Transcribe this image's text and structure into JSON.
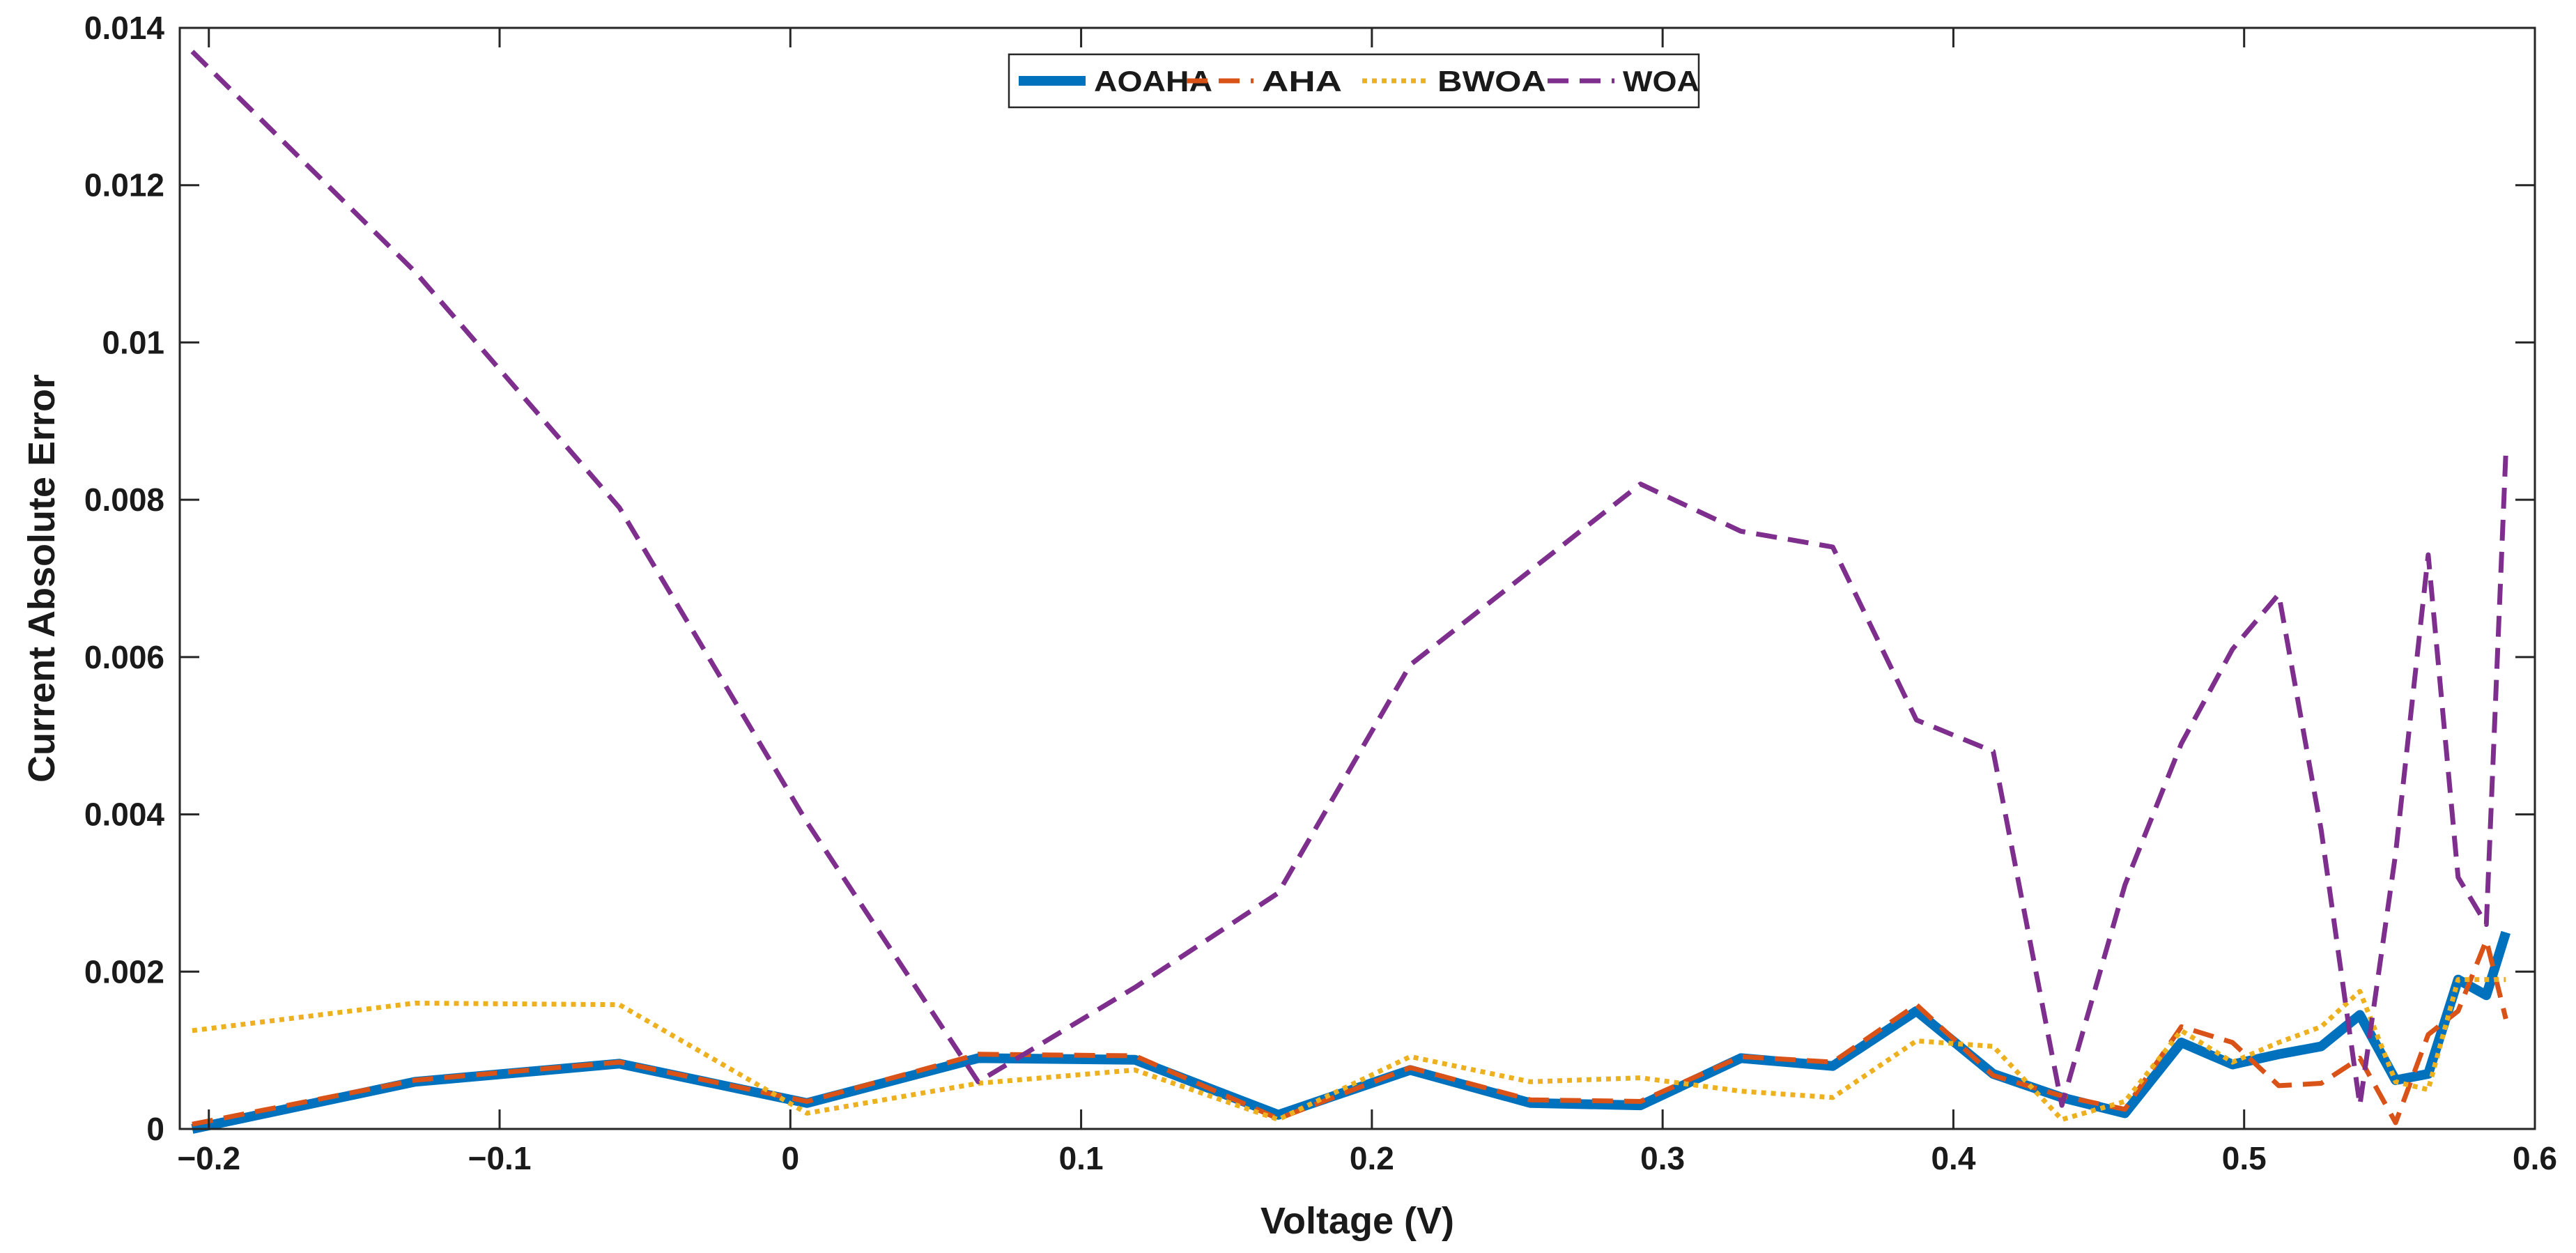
{
  "chart_data": {
    "type": "line",
    "title": "",
    "xlabel": "Voltage (V)",
    "ylabel": "Current Absolute Error",
    "xlim": [
      -0.21,
      0.6
    ],
    "ylim": [
      0,
      0.014
    ],
    "xticks": [
      -0.2,
      -0.1,
      0,
      0.1,
      0.2,
      0.3,
      0.4,
      0.5,
      0.6
    ],
    "xtick_labels": [
      "−0.2",
      "−0.1",
      "0",
      "0.1",
      "0.2",
      "0.3",
      "0.4",
      "0.5",
      "0.6"
    ],
    "yticks": [
      0,
      0.002,
      0.004,
      0.006,
      0.008,
      0.01,
      0.012,
      0.014
    ],
    "ytick_labels": [
      "0",
      "0.002",
      "0.004",
      "0.006",
      "0.008",
      "0.01",
      "0.012",
      "0.014"
    ],
    "grid": false,
    "legend_position": "top-center",
    "x": [
      -0.2057,
      -0.1291,
      -0.0588,
      0.0057,
      0.0646,
      0.1185,
      0.1678,
      0.2132,
      0.2545,
      0.2924,
      0.3269,
      0.3585,
      0.3873,
      0.4137,
      0.4373,
      0.459,
      0.4784,
      0.496,
      0.5119,
      0.5265,
      0.5398,
      0.5521,
      0.5633,
      0.5736,
      0.5833,
      0.59
    ],
    "series": [
      {
        "name": "AOAHA",
        "color": "#0072BD",
        "style": "solid",
        "values": [
          0.0,
          0.0006,
          0.00083,
          0.00033,
          0.0009,
          0.00088,
          0.00018,
          0.00075,
          0.00033,
          0.0003,
          0.0009,
          0.0008,
          0.0015,
          0.0007,
          0.0004,
          0.0002,
          0.0011,
          0.00082,
          0.00095,
          0.00105,
          0.00145,
          0.00062,
          0.0007,
          0.0019,
          0.0017,
          0.0025
        ]
      },
      {
        "name": "AHA",
        "color": "#D95319",
        "style": "dashed",
        "values": [
          6e-05,
          0.00062,
          0.00085,
          0.00035,
          0.00095,
          0.00093,
          0.00013,
          0.00078,
          0.00037,
          0.00035,
          0.00092,
          0.00085,
          0.00158,
          0.00068,
          0.00042,
          0.00025,
          0.0013,
          0.0011,
          0.00055,
          0.00058,
          0.0009,
          8e-05,
          0.0012,
          0.0015,
          0.0024,
          0.0014
        ]
      },
      {
        "name": "BWOA",
        "color": "#EDB120",
        "style": "dotted",
        "values": [
          0.00125,
          0.0016,
          0.00158,
          0.0002,
          0.00058,
          0.00075,
          0.00012,
          0.00092,
          0.0006,
          0.00065,
          0.00048,
          0.0004,
          0.00112,
          0.00105,
          0.00012,
          0.00035,
          0.00125,
          0.00085,
          0.0011,
          0.0013,
          0.00175,
          0.0006,
          0.0005,
          0.0019,
          0.0019,
          0.0019
        ]
      },
      {
        "name": "WOA",
        "color": "#7E2F8E",
        "style": "dashed",
        "values": [
          0.0137,
          0.0109,
          0.0079,
          0.0039,
          0.0006,
          0.0018,
          0.003,
          0.0059,
          0.0071,
          0.0082,
          0.0076,
          0.0074,
          0.0052,
          0.0048,
          0.0003,
          0.0031,
          0.0049,
          0.0061,
          0.0068,
          0.0038,
          0.0003,
          0.0035,
          0.0073,
          0.0032,
          0.0026,
          0.0086
        ]
      }
    ]
  }
}
